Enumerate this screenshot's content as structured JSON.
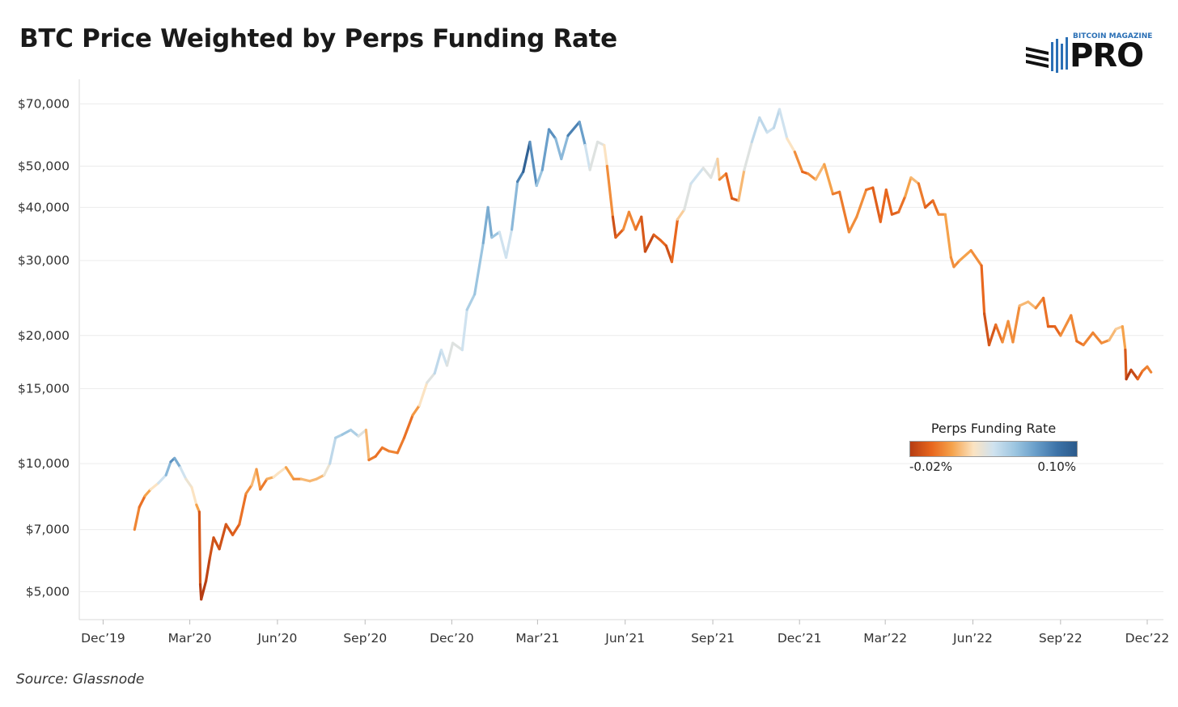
{
  "chart_data": {
    "type": "line",
    "title": "BTC Price Weighted by Perps Funding Rate",
    "source": "Source: Glassnode",
    "y_scale": "log",
    "ylim": [
      4300,
      80000
    ],
    "y_ticks": [
      {
        "value": 5000,
        "label": "$5,000"
      },
      {
        "value": 7000,
        "label": "$7,000"
      },
      {
        "value": 10000,
        "label": "$10,000"
      },
      {
        "value": 15000,
        "label": "$15,000"
      },
      {
        "value": 20000,
        "label": "$20,000"
      },
      {
        "value": 30000,
        "label": "$30,000"
      },
      {
        "value": 40000,
        "label": "$40,000"
      },
      {
        "value": 50000,
        "label": "$50,000"
      },
      {
        "value": 70000,
        "label": "$70,000"
      }
    ],
    "x_ticks": [
      {
        "date": "2019-12-01",
        "label": "Dec’19"
      },
      {
        "date": "2020-03-01",
        "label": "Mar’20"
      },
      {
        "date": "2020-06-01",
        "label": "Jun’20"
      },
      {
        "date": "2020-09-01",
        "label": "Sep’20"
      },
      {
        "date": "2020-12-01",
        "label": "Dec’20"
      },
      {
        "date": "2021-03-01",
        "label": "Mar’21"
      },
      {
        "date": "2021-06-01",
        "label": "Jun’21"
      },
      {
        "date": "2021-09-01",
        "label": "Sep’21"
      },
      {
        "date": "2021-12-01",
        "label": "Dec’21"
      },
      {
        "date": "2022-03-01",
        "label": "Mar’22"
      },
      {
        "date": "2022-06-01",
        "label": "Jun’22"
      },
      {
        "date": "2022-09-01",
        "label": "Sep’22"
      },
      {
        "date": "2022-12-01",
        "label": "Dec’22"
      }
    ],
    "xlim": [
      "2019-11-06",
      "2022-12-18"
    ],
    "grid": "horizontal",
    "legend": {
      "title": "Perps Funding Rate",
      "min_label": "-0.02%",
      "max_label": "0.10%",
      "min": -0.02,
      "max": 0.1,
      "placement": "right",
      "colors": [
        "#b63d12",
        "#e8671e",
        "#f5a24b",
        "#fbe3c2",
        "#cfe2ef",
        "#9cc5e0",
        "#6a9fca",
        "#3d73a8",
        "#2b5a8b"
      ]
    },
    "series": [
      {
        "points": [
          [
            "2020-01-03",
            7000,
            0.01
          ],
          [
            "2020-01-08",
            7900,
            -0.005
          ],
          [
            "2020-01-14",
            8400,
            0.0
          ],
          [
            "2020-01-20",
            8700,
            0.02
          ],
          [
            "2020-01-28",
            9000,
            0.03
          ],
          [
            "2020-02-05",
            9400,
            0.05
          ],
          [
            "2020-02-10",
            10100,
            0.07
          ],
          [
            "2020-02-14",
            10300,
            0.08
          ],
          [
            "2020-02-20",
            9800,
            0.05
          ],
          [
            "2020-02-26",
            9200,
            0.03
          ],
          [
            "2020-03-03",
            8800,
            0.03
          ],
          [
            "2020-03-08",
            8000,
            0.02
          ],
          [
            "2020-03-11",
            7700,
            0.0
          ],
          [
            "2020-03-12",
            5200,
            -0.02
          ],
          [
            "2020-03-13",
            4800,
            -0.02
          ],
          [
            "2020-03-18",
            5300,
            -0.02
          ],
          [
            "2020-03-22",
            6000,
            -0.015
          ],
          [
            "2020-03-26",
            6700,
            -0.01
          ],
          [
            "2020-04-01",
            6300,
            -0.015
          ],
          [
            "2020-04-08",
            7200,
            -0.01
          ],
          [
            "2020-04-15",
            6800,
            -0.01
          ],
          [
            "2020-04-22",
            7200,
            -0.005
          ],
          [
            "2020-04-29",
            8500,
            0.0
          ],
          [
            "2020-05-05",
            8900,
            0.01
          ],
          [
            "2020-05-10",
            9700,
            0.02
          ],
          [
            "2020-05-14",
            8700,
            -0.005
          ],
          [
            "2020-05-21",
            9200,
            0.005
          ],
          [
            "2020-05-28",
            9300,
            0.02
          ],
          [
            "2020-06-02",
            9500,
            0.03
          ],
          [
            "2020-06-10",
            9800,
            0.02
          ],
          [
            "2020-06-18",
            9200,
            0.0
          ],
          [
            "2020-06-26",
            9200,
            0.01
          ],
          [
            "2020-07-05",
            9100,
            0.02
          ],
          [
            "2020-07-12",
            9200,
            0.01
          ],
          [
            "2020-07-20",
            9400,
            0.02
          ],
          [
            "2020-07-26",
            10000,
            0.04
          ],
          [
            "2020-08-01",
            11500,
            0.05
          ],
          [
            "2020-08-08",
            11700,
            0.05
          ],
          [
            "2020-08-17",
            12000,
            0.06
          ],
          [
            "2020-08-25",
            11600,
            0.04
          ],
          [
            "2020-09-02",
            12000,
            0.03
          ],
          [
            "2020-09-05",
            10200,
            0.0
          ],
          [
            "2020-09-12",
            10400,
            0.0
          ],
          [
            "2020-09-19",
            10900,
            -0.005
          ],
          [
            "2020-09-26",
            10700,
            0.005
          ],
          [
            "2020-10-05",
            10600,
            0.0
          ],
          [
            "2020-10-12",
            11500,
            0.0
          ],
          [
            "2020-10-21",
            13000,
            -0.005
          ],
          [
            "2020-10-28",
            13700,
            0.02
          ],
          [
            "2020-11-05",
            15500,
            0.03
          ],
          [
            "2020-11-13",
            16300,
            0.04
          ],
          [
            "2020-11-20",
            18500,
            0.05
          ],
          [
            "2020-11-26",
            17000,
            0.03
          ],
          [
            "2020-12-02",
            19200,
            0.04
          ],
          [
            "2020-12-12",
            18500,
            0.03
          ],
          [
            "2020-12-17",
            23000,
            0.05
          ],
          [
            "2020-12-25",
            25000,
            0.05
          ],
          [
            "2021-01-03",
            33000,
            0.06
          ],
          [
            "2021-01-08",
            40000,
            0.07
          ],
          [
            "2021-01-12",
            34000,
            0.06
          ],
          [
            "2021-01-20",
            35000,
            0.05
          ],
          [
            "2021-01-27",
            30500,
            0.03
          ],
          [
            "2021-02-02",
            35500,
            0.05
          ],
          [
            "2021-02-08",
            46000,
            0.07
          ],
          [
            "2021-02-14",
            48500,
            0.09
          ],
          [
            "2021-02-21",
            57000,
            0.1
          ],
          [
            "2021-02-28",
            45000,
            0.05
          ],
          [
            "2021-03-06",
            49000,
            0.06
          ],
          [
            "2021-03-13",
            61000,
            0.08
          ],
          [
            "2021-03-20",
            58000,
            0.07
          ],
          [
            "2021-03-26",
            52000,
            0.05
          ],
          [
            "2021-04-02",
            59000,
            0.07
          ],
          [
            "2021-04-14",
            63500,
            0.09
          ],
          [
            "2021-04-20",
            56000,
            0.05
          ],
          [
            "2021-04-25",
            49000,
            0.03
          ],
          [
            "2021-05-03",
            57000,
            0.04
          ],
          [
            "2021-05-10",
            56000,
            0.03
          ],
          [
            "2021-05-13",
            50000,
            0.02
          ],
          [
            "2021-05-19",
            38000,
            -0.01
          ],
          [
            "2021-05-22",
            34000,
            -0.015
          ],
          [
            "2021-05-30",
            35500,
            0.0
          ],
          [
            "2021-06-05",
            39000,
            0.01
          ],
          [
            "2021-06-12",
            35500,
            -0.005
          ],
          [
            "2021-06-18",
            38000,
            0.0
          ],
          [
            "2021-06-22",
            31500,
            -0.02
          ],
          [
            "2021-07-01",
            34500,
            -0.01
          ],
          [
            "2021-07-08",
            33500,
            -0.005
          ],
          [
            "2021-07-14",
            32500,
            -0.005
          ],
          [
            "2021-07-20",
            29800,
            -0.02
          ],
          [
            "2021-07-26",
            37500,
            0.01
          ],
          [
            "2021-08-02",
            39500,
            0.03
          ],
          [
            "2021-08-09",
            45500,
            0.04
          ],
          [
            "2021-08-14",
            47000,
            0.04
          ],
          [
            "2021-08-22",
            49500,
            0.04
          ],
          [
            "2021-08-30",
            47000,
            0.03
          ],
          [
            "2021-09-06",
            52000,
            0.04
          ],
          [
            "2021-09-08",
            46500,
            0.0
          ],
          [
            "2021-09-15",
            48000,
            0.01
          ],
          [
            "2021-09-21",
            42000,
            -0.02
          ],
          [
            "2021-09-28",
            41500,
            0.0
          ],
          [
            "2021-10-04",
            49000,
            0.03
          ],
          [
            "2021-10-12",
            57000,
            0.04
          ],
          [
            "2021-10-20",
            65000,
            0.05
          ],
          [
            "2021-10-28",
            60000,
            0.04
          ],
          [
            "2021-11-04",
            61500,
            0.04
          ],
          [
            "2021-11-10",
            68000,
            0.05
          ],
          [
            "2021-11-18",
            58000,
            0.03
          ],
          [
            "2021-11-26",
            54000,
            0.02
          ],
          [
            "2021-12-04",
            48500,
            -0.01
          ],
          [
            "2021-12-10",
            48000,
            0.0
          ],
          [
            "2021-12-18",
            46500,
            0.01
          ],
          [
            "2021-12-27",
            50500,
            0.02
          ],
          [
            "2022-01-05",
            43000,
            0.0
          ],
          [
            "2022-01-12",
            43500,
            0.0
          ],
          [
            "2022-01-22",
            35000,
            0.0
          ],
          [
            "2022-01-30",
            38000,
            0.01
          ],
          [
            "2022-02-09",
            44000,
            0.0
          ],
          [
            "2022-02-16",
            44500,
            -0.005
          ],
          [
            "2022-02-24",
            37000,
            -0.01
          ],
          [
            "2022-03-02",
            44000,
            0.0
          ],
          [
            "2022-03-08",
            38500,
            -0.01
          ],
          [
            "2022-03-15",
            39000,
            -0.005
          ],
          [
            "2022-03-22",
            42500,
            0.0
          ],
          [
            "2022-03-28",
            47000,
            0.02
          ],
          [
            "2022-04-05",
            45500,
            0.01
          ],
          [
            "2022-04-12",
            40000,
            -0.01
          ],
          [
            "2022-04-20",
            41500,
            -0.005
          ],
          [
            "2022-04-26",
            38500,
            0.0
          ],
          [
            "2022-05-03",
            38500,
            0.01
          ],
          [
            "2022-05-09",
            30500,
            0.01
          ],
          [
            "2022-05-12",
            29000,
            0.0
          ],
          [
            "2022-05-18",
            30000,
            0.01
          ],
          [
            "2022-05-30",
            31700,
            0.01
          ],
          [
            "2022-06-10",
            29200,
            0.0
          ],
          [
            "2022-06-13",
            22500,
            -0.01
          ],
          [
            "2022-06-18",
            19000,
            -0.015
          ],
          [
            "2022-06-25",
            21200,
            -0.005
          ],
          [
            "2022-07-02",
            19300,
            0.0
          ],
          [
            "2022-07-08",
            21600,
            0.01
          ],
          [
            "2022-07-13",
            19300,
            0.0
          ],
          [
            "2022-07-20",
            23500,
            0.01
          ],
          [
            "2022-07-29",
            24000,
            0.02
          ],
          [
            "2022-08-06",
            23200,
            0.01
          ],
          [
            "2022-08-14",
            24500,
            0.0
          ],
          [
            "2022-08-19",
            21000,
            -0.005
          ],
          [
            "2022-08-26",
            21000,
            -0.01
          ],
          [
            "2022-09-01",
            20000,
            0.0
          ],
          [
            "2022-09-12",
            22300,
            0.01
          ],
          [
            "2022-09-18",
            19400,
            -0.005
          ],
          [
            "2022-09-25",
            19000,
            0.0
          ],
          [
            "2022-10-05",
            20300,
            0.005
          ],
          [
            "2022-10-14",
            19200,
            0.0
          ],
          [
            "2022-10-22",
            19500,
            0.01
          ],
          [
            "2022-10-29",
            20700,
            0.02
          ],
          [
            "2022-11-05",
            21000,
            0.02
          ],
          [
            "2022-11-08",
            18500,
            0.0
          ],
          [
            "2022-11-09",
            15800,
            -0.02
          ],
          [
            "2022-11-14",
            16600,
            -0.02
          ],
          [
            "2022-11-21",
            15800,
            -0.01
          ],
          [
            "2022-11-26",
            16500,
            0.0
          ],
          [
            "2022-12-01",
            16900,
            0.0
          ],
          [
            "2022-12-05",
            16400,
            0.005
          ]
        ]
      }
    ]
  },
  "logo": {
    "top_text": "BITCOIN MAGAZINE",
    "main_text": "PRO"
  }
}
